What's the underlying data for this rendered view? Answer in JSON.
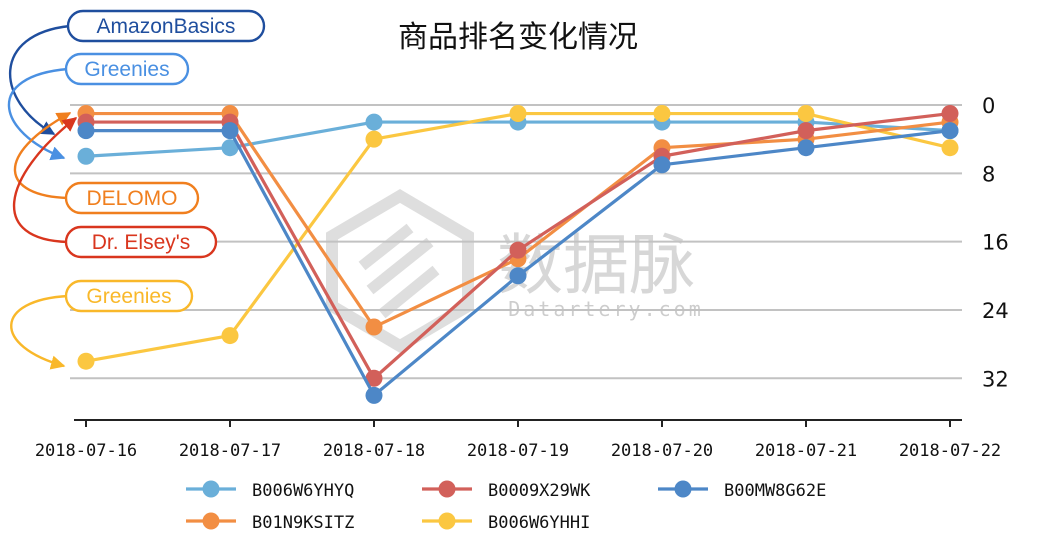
{
  "chart_data": {
    "type": "line",
    "title": "商品排名变化情况",
    "x": [
      "2018-07-16",
      "2018-07-17",
      "2018-07-18",
      "2018-07-19",
      "2018-07-20",
      "2018-07-21",
      "2018-07-22"
    ],
    "ylim": [
      0,
      37
    ],
    "y_inverted": true,
    "y_axis_side": "right",
    "y_ticks": [
      0,
      8,
      16,
      24,
      32
    ],
    "y_tick_labels": [
      "0",
      "8",
      "16",
      "24",
      "32"
    ],
    "grid": "horizontal",
    "legend_position": "bottom",
    "series": [
      {
        "name": "B006W6YHYQ",
        "color": "#6AAFD9",
        "values": [
          6,
          5,
          2,
          2,
          2,
          2,
          3
        ]
      },
      {
        "name": "B0009X29WK",
        "color": "#D2605A",
        "values": [
          2,
          2,
          32,
          17,
          6,
          3,
          1
        ]
      },
      {
        "name": "B00MW8G62E",
        "color": "#4D87C7",
        "values": [
          3,
          3,
          34,
          20,
          7,
          5,
          3
        ]
      },
      {
        "name": "B01N9KSITZ",
        "color": "#F28E43",
        "values": [
          1,
          1,
          26,
          18,
          5,
          4,
          2
        ]
      },
      {
        "name": "B006W6YHHI",
        "color": "#FBC741",
        "values": [
          30,
          27,
          4,
          1,
          1,
          1,
          5
        ]
      }
    ],
    "annotations": [
      {
        "text": "AmazonBasics",
        "color": "#1F4E9E",
        "series": "B00MW8G62E"
      },
      {
        "text": "Greenies",
        "color": "#4A90E2",
        "series": "B006W6YHYQ"
      },
      {
        "text": "DELOMO",
        "color": "#F07F1E",
        "series": "B01N9KSITZ"
      },
      {
        "text": "Dr. Elsey's",
        "color": "#D9361E",
        "series": "B0009X29WK"
      },
      {
        "text": "Greenies",
        "color": "#F9B82A",
        "series": "B006W6YHHI"
      }
    ]
  },
  "watermark": {
    "text_cn": "数据脉",
    "text_en": "Datartery.com"
  }
}
